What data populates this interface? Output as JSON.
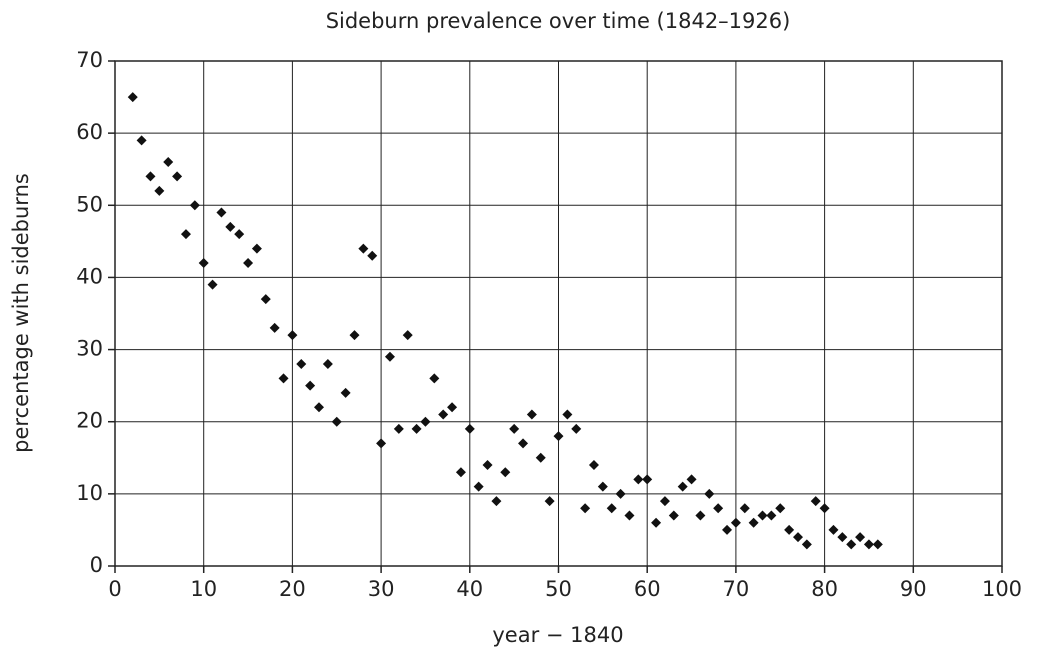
{
  "chart_data": {
    "type": "scatter",
    "title": "Sideburn prevalence over time (1842–1926)",
    "xlabel": "year − 1840",
    "ylabel": "percentage with sideburns",
    "x": [
      2,
      3,
      4,
      5,
      6,
      7,
      8,
      9,
      10,
      11,
      12,
      13,
      14,
      15,
      16,
      17,
      18,
      19,
      20,
      21,
      22,
      23,
      24,
      25,
      26,
      27,
      28,
      29,
      30,
      31,
      32,
      33,
      34,
      35,
      36,
      37,
      38,
      39,
      40,
      41,
      42,
      43,
      44,
      45,
      46,
      47,
      48,
      49,
      50,
      51,
      52,
      53,
      54,
      55,
      56,
      57,
      58,
      59,
      60,
      61,
      62,
      63,
      64,
      65,
      66,
      67,
      68,
      69,
      70,
      71,
      72,
      73,
      74,
      75,
      76,
      77,
      78,
      79,
      80,
      81,
      82,
      83,
      84,
      85,
      86
    ],
    "values": [
      65,
      59,
      54,
      52,
      56,
      54,
      46,
      50,
      42,
      39,
      49,
      47,
      46,
      42,
      44,
      37,
      33,
      26,
      32,
      28,
      25,
      22,
      28,
      20,
      24,
      32,
      44,
      43,
      17,
      29,
      19,
      32,
      19,
      20,
      26,
      21,
      22,
      13,
      19,
      11,
      14,
      9,
      13,
      19,
      17,
      21,
      15,
      9,
      18,
      21,
      19,
      8,
      14,
      11,
      8,
      10,
      7,
      12,
      12,
      6,
      9,
      7,
      11,
      12,
      7,
      10,
      8,
      5,
      6,
      8,
      6,
      7,
      7,
      8,
      5,
      4,
      3,
      9,
      8,
      5,
      4,
      3,
      4,
      3,
      3
    ],
    "color": "#111111",
    "xlim": [
      0,
      100
    ],
    "xticks": [
      0,
      10,
      20,
      30,
      40,
      50,
      60,
      70,
      80,
      90,
      100
    ],
    "ylim": [
      0,
      70
    ],
    "yticks": [
      0,
      10,
      20,
      30,
      40,
      50,
      60,
      70
    ],
    "grid": true
  }
}
